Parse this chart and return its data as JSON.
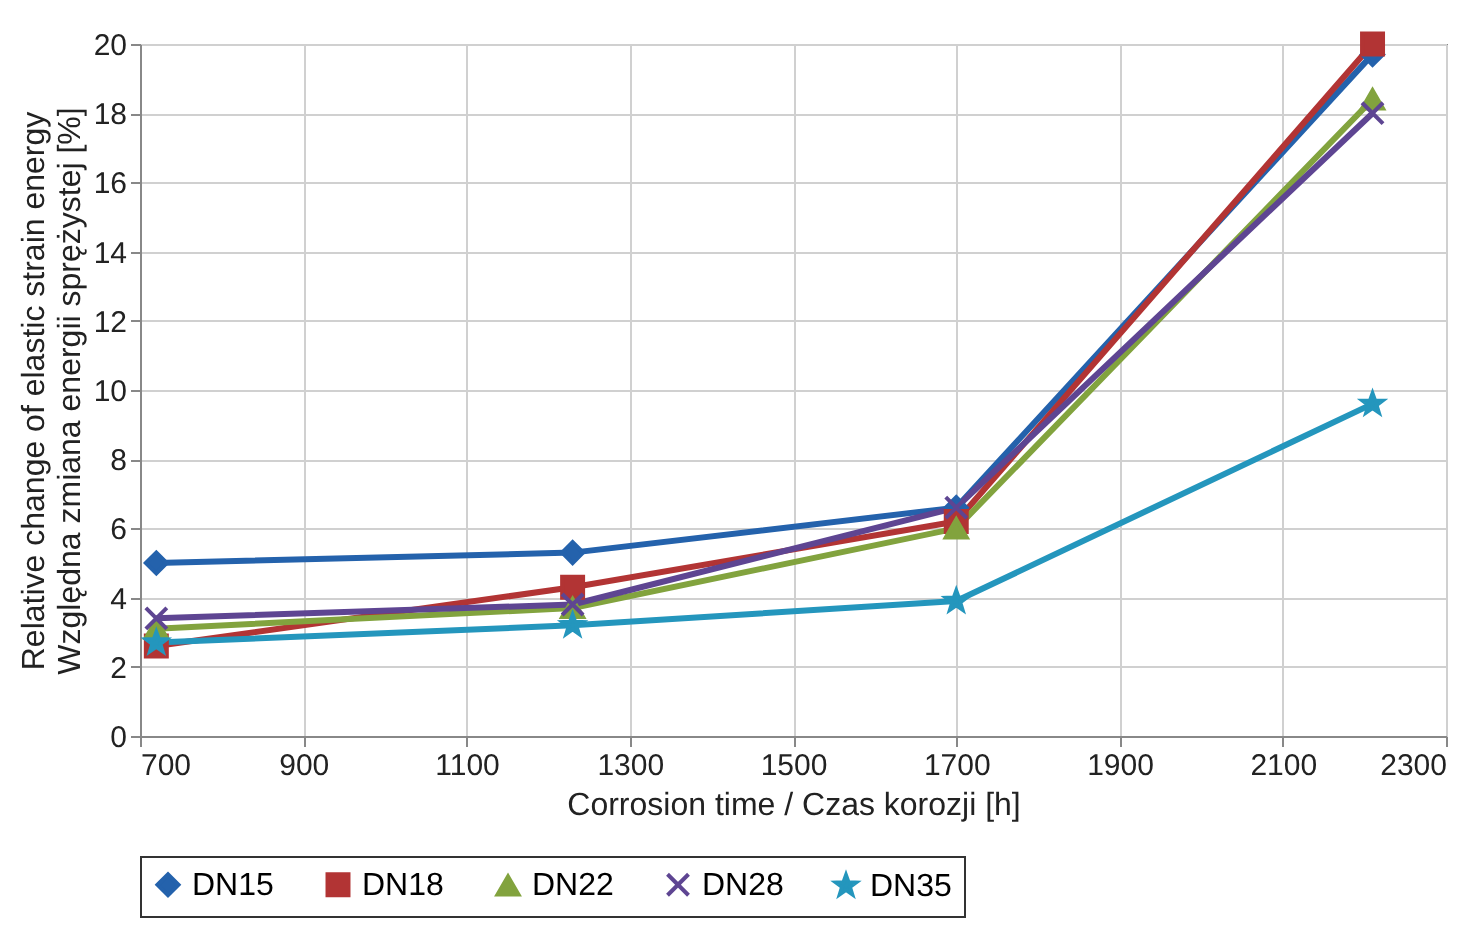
{
  "chart_data": {
    "type": "line",
    "xlabel": "Corrosion time / Czas korozji [h]",
    "ylabel": "Relative change of elastic strain energy\nWzględna zmiana energii sprężystej [%]",
    "x": [
      720,
      1230,
      1700,
      2210
    ],
    "series": [
      {
        "name": "DN15",
        "color": "#2462ac",
        "marker": "diamond",
        "values": [
          5.0,
          5.3,
          6.6,
          19.7
        ]
      },
      {
        "name": "DN18",
        "color": "#b23434",
        "marker": "square",
        "values": [
          2.6,
          4.3,
          6.2,
          20.0
        ]
      },
      {
        "name": "DN22",
        "color": "#82a33e",
        "marker": "triangle",
        "values": [
          3.1,
          3.7,
          6.0,
          18.4
        ]
      },
      {
        "name": "DN28",
        "color": "#5e4592",
        "marker": "cross",
        "values": [
          3.4,
          3.8,
          6.6,
          18.0
        ]
      },
      {
        "name": "DN35",
        "color": "#2496bd",
        "marker": "star",
        "values": [
          2.7,
          3.2,
          3.9,
          9.6
        ]
      }
    ],
    "xlim": [
      700,
      2300
    ],
    "xticks": [
      700,
      900,
      1100,
      1300,
      1500,
      1700,
      1900,
      2100,
      2300
    ],
    "ylim": [
      0,
      20
    ],
    "yticks": [
      0,
      2,
      4,
      6,
      8,
      10,
      12,
      14,
      16,
      18,
      20
    ],
    "grid": true,
    "legend": "bottom",
    "line_style": "solid"
  }
}
